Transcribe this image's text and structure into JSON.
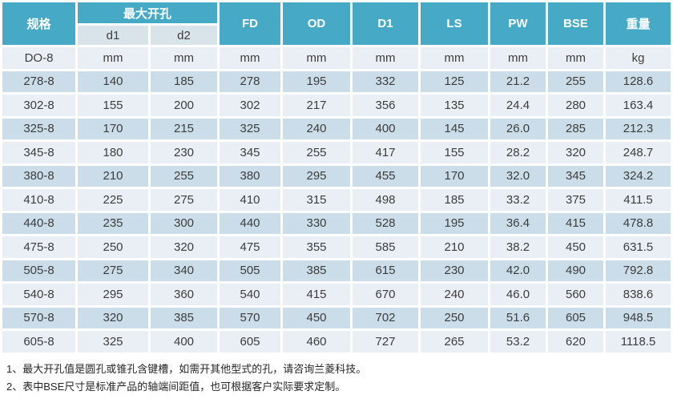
{
  "colors": {
    "header_teal": "#46aac6",
    "subheader_bg": "#d9e4ea",
    "row_light": "#e9eff4",
    "row_dark": "#cbdde8",
    "text": "#3d3d3d"
  },
  "table": {
    "header": {
      "spec": "规格",
      "max_opening": "最大开孔",
      "sub": [
        "d1",
        "d2"
      ],
      "cols": [
        "FD",
        "OD",
        "D1",
        "LS",
        "PW",
        "BSE",
        "重量"
      ]
    },
    "units_row": {
      "spec": "DO-8",
      "values": [
        "mm",
        "mm",
        "mm",
        "mm",
        "mm",
        "mm",
        "mm",
        "mm",
        "kg"
      ]
    },
    "rows": [
      {
        "spec": "278-8",
        "values": [
          "140",
          "185",
          "278",
          "195",
          "332",
          "125",
          "21.2",
          "255",
          "128.6"
        ]
      },
      {
        "spec": "302-8",
        "values": [
          "155",
          "200",
          "302",
          "217",
          "356",
          "135",
          "24.4",
          "280",
          "163.4"
        ]
      },
      {
        "spec": "325-8",
        "values": [
          "170",
          "215",
          "325",
          "240",
          "400",
          "145",
          "26.0",
          "285",
          "212.3"
        ]
      },
      {
        "spec": "345-8",
        "values": [
          "180",
          "230",
          "345",
          "255",
          "417",
          "155",
          "28.2",
          "320",
          "248.7"
        ]
      },
      {
        "spec": "380-8",
        "values": [
          "210",
          "255",
          "380",
          "295",
          "455",
          "170",
          "32.0",
          "345",
          "324.2"
        ]
      },
      {
        "spec": "410-8",
        "values": [
          "225",
          "275",
          "410",
          "315",
          "498",
          "185",
          "33.2",
          "375",
          "411.5"
        ]
      },
      {
        "spec": "440-8",
        "values": [
          "235",
          "300",
          "440",
          "330",
          "528",
          "195",
          "36.4",
          "415",
          "478.8"
        ]
      },
      {
        "spec": "475-8",
        "values": [
          "250",
          "320",
          "475",
          "355",
          "585",
          "210",
          "38.2",
          "450",
          "631.5"
        ]
      },
      {
        "spec": "505-8",
        "values": [
          "275",
          "340",
          "505",
          "385",
          "615",
          "230",
          "42.0",
          "490",
          "792.8"
        ]
      },
      {
        "spec": "540-8",
        "values": [
          "295",
          "360",
          "540",
          "415",
          "670",
          "240",
          "46.0",
          "560",
          "838.6"
        ]
      },
      {
        "spec": "570-8",
        "values": [
          "320",
          "385",
          "570",
          "450",
          "702",
          "250",
          "51.6",
          "605",
          "948.5"
        ]
      },
      {
        "spec": "605-8",
        "values": [
          "325",
          "400",
          "605",
          "460",
          "727",
          "265",
          "53.2",
          "620",
          "1118.5"
        ]
      }
    ]
  },
  "footnotes": [
    "1、最大开孔值是圆孔或锥孔含键槽，如需开其他型式的孔，请咨询兰菱科技。",
    "2、表中BSE尺寸是标准产品的轴端间距值，也可根据客户实际要求定制。"
  ]
}
